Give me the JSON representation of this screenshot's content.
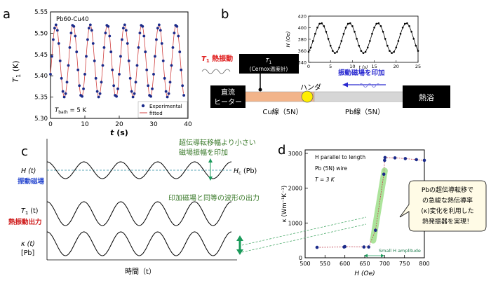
{
  "panel_labels": {
    "a": "a",
    "b": "b",
    "c": "c",
    "d": "d"
  },
  "panel_a": {
    "sample": "Pb60-Cu40",
    "ylabel_sym": "T",
    "ylabel_sub": "1",
    "ylabel_unit": " (K)",
    "xlabel_sym": "t",
    "xlabel_unit": " (s)",
    "bath_label": "T",
    "bath_sub": "bath",
    "bath_value": " = 5 K",
    "legend": [
      "Experimental",
      "fitted"
    ],
    "yticks": [
      "5.55",
      "5.50",
      "5.45",
      "5.40",
      "5.35",
      "5.30"
    ],
    "xticks": [
      "0",
      "10",
      "20",
      "30",
      "40"
    ],
    "colors": {
      "points": "#1a2a8a",
      "fit": "#d04040"
    }
  },
  "panel_b": {
    "inset_ylabel": "H (Oe)",
    "inset_xlabel": "t (s)",
    "inset_yticks": [
      "420",
      "400",
      "380",
      "360",
      "340"
    ],
    "inset_xticks": [
      "0",
      "5",
      "10",
      "15",
      "20",
      "25"
    ],
    "thermal_osc_sym": "T",
    "thermal_osc_sub": "1",
    "thermal_osc_text": " 熱振動",
    "sensor_line1_sym": "T",
    "sensor_line1_sub": "1",
    "sensor_line2": "(Cernox温度計)",
    "solder": "ハンダ",
    "field_label": "振動磁場を印加",
    "heater_line1": "直流",
    "heater_line2": "ヒーター",
    "cu_wire": "Cu線（5N）",
    "pb_wire": "Pb線（5N）",
    "bath": "熱浴"
  },
  "panel_c": {
    "note1_line1": "超伝導転移幅より小さい",
    "note1_line2": "磁場振幅を印加",
    "note2": "印加磁場と同等の波形の出力",
    "h_label": "H (t)",
    "h_sub_label": "振動磁場",
    "hc_label": "H",
    "hc_sub": "c",
    "hc_suffix": " (Pb)",
    "t1_label_sym": "T",
    "t1_label_sub": "1",
    "t1_label_suffix": " (t)",
    "t1_sub_label": "熱振動出力",
    "kappa_label": "κ (t)",
    "kappa_sub_label": "[Pb]",
    "xlabel": "時間（t）"
  },
  "panel_d": {
    "annot1": "H parallel to length",
    "annot2": "Pb (5N) wire",
    "annot3": "T = 3 K",
    "ylabel": "κ (Wm⁻¹K⁻¹)",
    "xlabel": "H (Oe)",
    "small_amp": "Small H amplitude",
    "callout_lines": [
      "Pbの超伝導転移で",
      "の急峻な熱伝導率",
      "(κ)変化を利用した",
      "熱発振器を実現！"
    ],
    "yticks": [
      "3000",
      "2000",
      "1000",
      "0"
    ],
    "xticks": [
      "500",
      "550",
      "600",
      "650",
      "700",
      "750",
      "800"
    ]
  },
  "chart_data": [
    {
      "type": "scatter",
      "title": "Pb60-Cu40",
      "xlabel": "t (s)",
      "ylabel": "T1 (K)",
      "xlim": [
        0,
        40
      ],
      "ylim": [
        5.3,
        5.55
      ],
      "series": [
        {
          "name": "Experimental",
          "style": "points",
          "model": {
            "mean": 5.435,
            "amplitude": 0.085,
            "period_s": 5.0,
            "t_max": 38.8,
            "dt": 0.4
          }
        },
        {
          "name": "fitted",
          "style": "line",
          "model": {
            "mean": 5.435,
            "amplitude": 0.085,
            "period_s": 5.0,
            "t_max": 38.8
          }
        }
      ]
    },
    {
      "type": "line",
      "xlabel": "t (s)",
      "ylabel": "H (Oe)",
      "xlim": [
        0,
        25
      ],
      "ylim": [
        340,
        420
      ],
      "series": [
        {
          "name": "",
          "model": {
            "mean": 382,
            "amplitude": 26,
            "period_s": 6.5,
            "t_max": 25,
            "dt": 0.5
          }
        }
      ]
    },
    {
      "type": "scatter",
      "xlabel": "H (Oe)",
      "ylabel": "κ (Wm⁻¹K⁻¹)",
      "xlim": [
        500,
        800
      ],
      "ylim": [
        0,
        3100
      ],
      "series": [
        {
          "name": "",
          "x": [
            530,
            598,
            600,
            648,
            660,
            677,
            698,
            700,
            701,
            726,
            752,
            780,
            800
          ],
          "y": [
            300,
            310,
            320,
            310,
            310,
            790,
            2400,
            2800,
            2880,
            2870,
            2850,
            2820,
            2800
          ]
        }
      ]
    }
  ]
}
